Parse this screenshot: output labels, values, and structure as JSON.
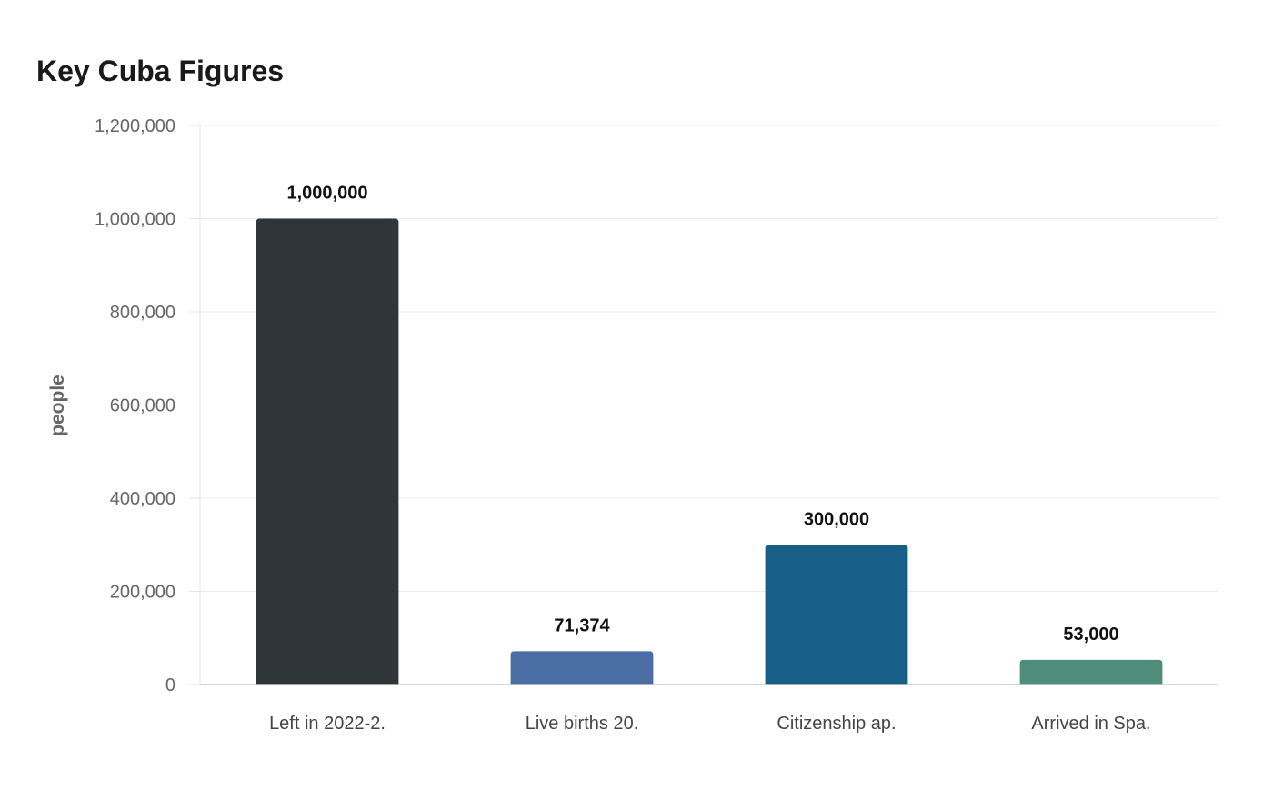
{
  "chart_data": {
    "type": "bar",
    "title": "Key Cuba Figures",
    "xlabel": "",
    "ylabel": "people",
    "ylim": [
      0,
      1200000
    ],
    "yticks": [
      0,
      200000,
      400000,
      600000,
      800000,
      1000000,
      1200000
    ],
    "grid": true,
    "categories": [
      "Left in 2022-2.",
      "Live births 20.",
      "Citizenship ap.",
      "Arrived in Spa."
    ],
    "values": [
      1000000,
      71374,
      300000,
      53000
    ],
    "colors": [
      "#2e3639",
      "#4a6ea3",
      "#175f87",
      "#4f8c7a"
    ]
  }
}
